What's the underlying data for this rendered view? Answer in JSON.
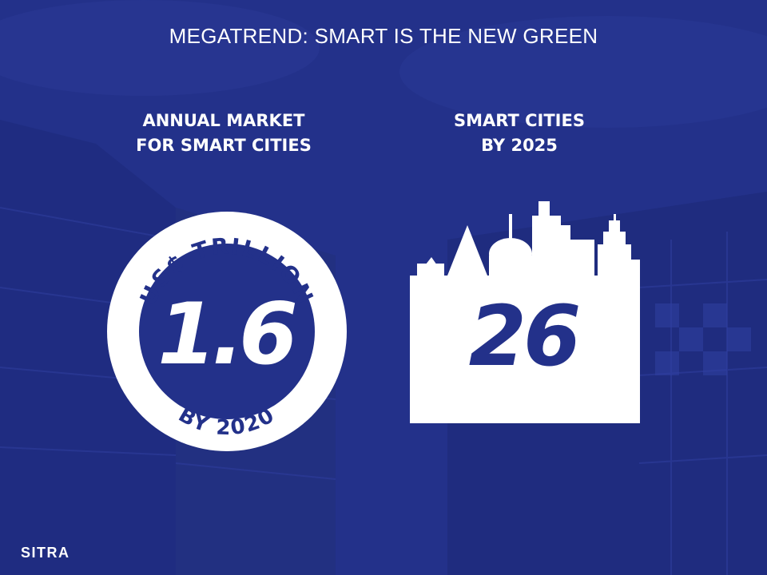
{
  "slide": {
    "title": "MEGATREND: SMART IS THE NEW GREEN"
  },
  "market": {
    "heading_line1": "ANNUAL MARKET",
    "heading_line2": "FOR SMART CITIES",
    "badge_top": "US$ TRILLION",
    "value": "1.6",
    "badge_bottom": "BY 2020"
  },
  "cities": {
    "heading_line1": "SMART CITIES",
    "heading_line2": "BY 2025",
    "value": "26"
  },
  "brand": {
    "logo_text": "SITRA"
  },
  "colors": {
    "background": "#23318a",
    "foreground": "#ffffff",
    "accent_number": "#23318a"
  }
}
